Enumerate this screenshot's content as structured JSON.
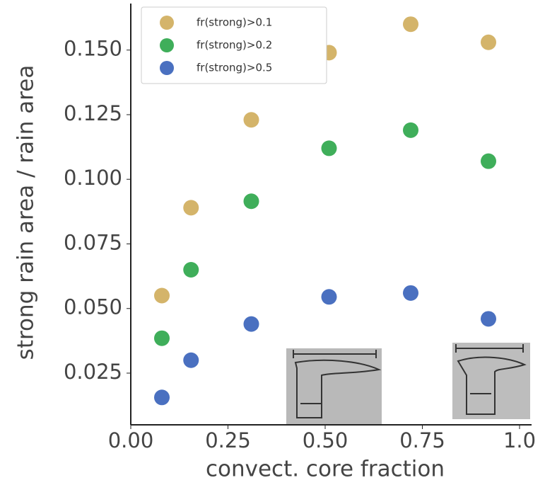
{
  "chart_data": {
    "type": "scatter",
    "xlabel": "convect. core fraction",
    "ylabel": "strong rain area / rain area",
    "xlim": [
      0,
      1.03
    ],
    "ylim": [
      0.005,
      0.168
    ],
    "xticks": [
      {
        "value": 0,
        "label": "0.00"
      },
      0.25,
      {
        "value": 0.5,
        "label": "0.50"
      },
      0.75,
      {
        "value": 1,
        "label": "1.0"
      }
    ],
    "yticks": [
      0.025,
      {
        "value": 0.05,
        "label": "0.050"
      },
      0.075,
      {
        "value": 0.1,
        "label": "0.100"
      },
      0.125,
      {
        "value": 0.15,
        "label": "0.150"
      }
    ],
    "legend": "upper left",
    "series": [
      {
        "name": "fr(strong)>0.1",
        "color": "#d4b46a",
        "x": [
          0.08,
          0.155,
          0.31,
          0.51,
          0.72,
          0.92
        ],
        "values": [
          0.055,
          0.089,
          0.123,
          0.149,
          0.16,
          0.153
        ]
      },
      {
        "name": "fr(strong)>0.2",
        "color": "#3fae5a",
        "x": [
          0.08,
          0.155,
          0.31,
          0.51,
          0.72,
          0.92
        ],
        "values": [
          0.0385,
          0.065,
          0.0915,
          0.112,
          0.119,
          0.107
        ]
      },
      {
        "name": "fr(strong)>0.5",
        "color": "#4a70c0",
        "x": [
          0.08,
          0.155,
          0.31,
          0.51,
          0.72,
          0.92
        ],
        "values": [
          0.0156,
          0.03,
          0.044,
          0.0545,
          0.056,
          0.046
        ]
      }
    ]
  }
}
